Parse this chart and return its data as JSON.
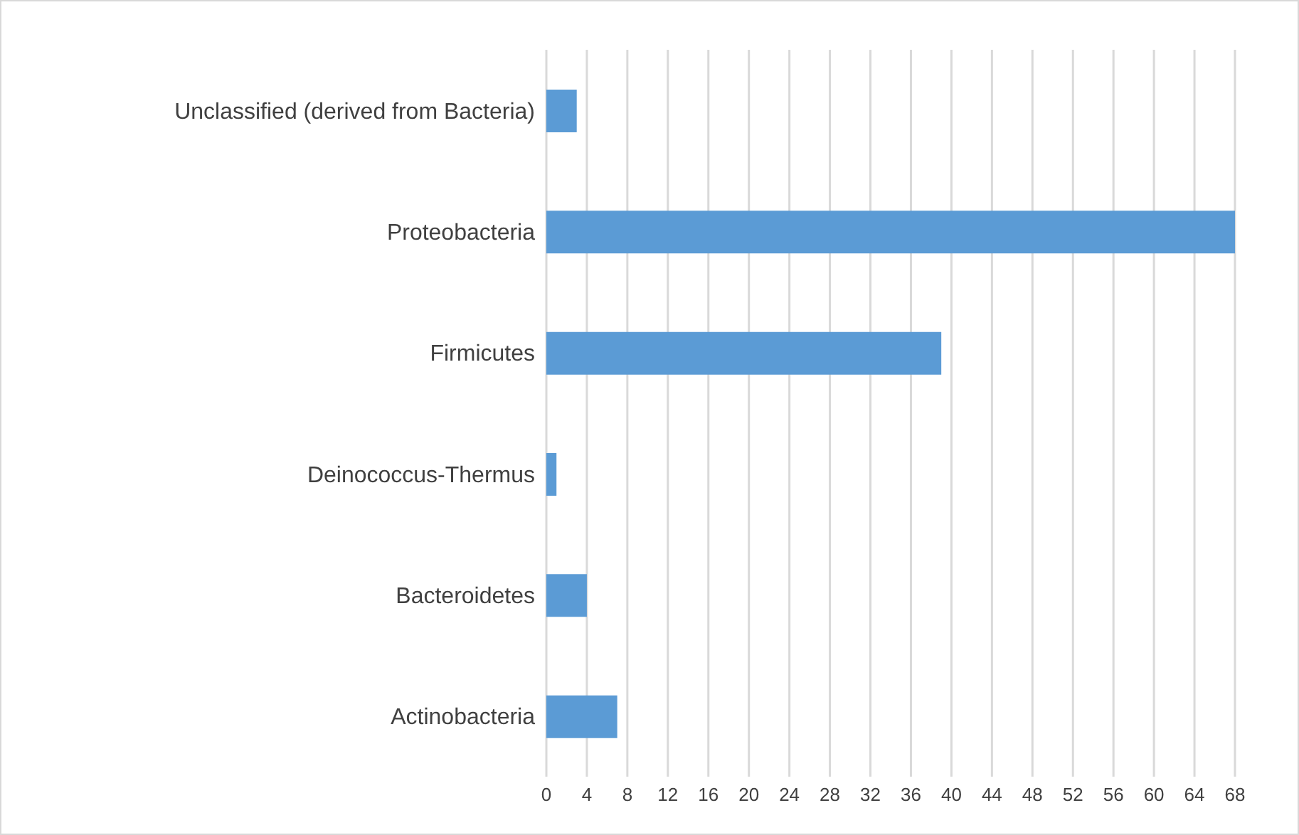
{
  "chart_data": {
    "type": "bar",
    "orientation": "horizontal",
    "categories": [
      "Unclassified (derived from Bacteria)",
      "Proteobacteria",
      "Firmicutes",
      "Deinococcus-Thermus",
      "Bacteroidetes",
      "Actinobacteria"
    ],
    "values": [
      3,
      68,
      39,
      1,
      4,
      7
    ],
    "color": "#5b9bd5",
    "xlim": [
      0,
      68
    ],
    "xticks": [
      0,
      4,
      8,
      12,
      16,
      20,
      24,
      28,
      32,
      36,
      40,
      44,
      48,
      52,
      56,
      60,
      64,
      68
    ],
    "grid": "x",
    "legend": false
  }
}
